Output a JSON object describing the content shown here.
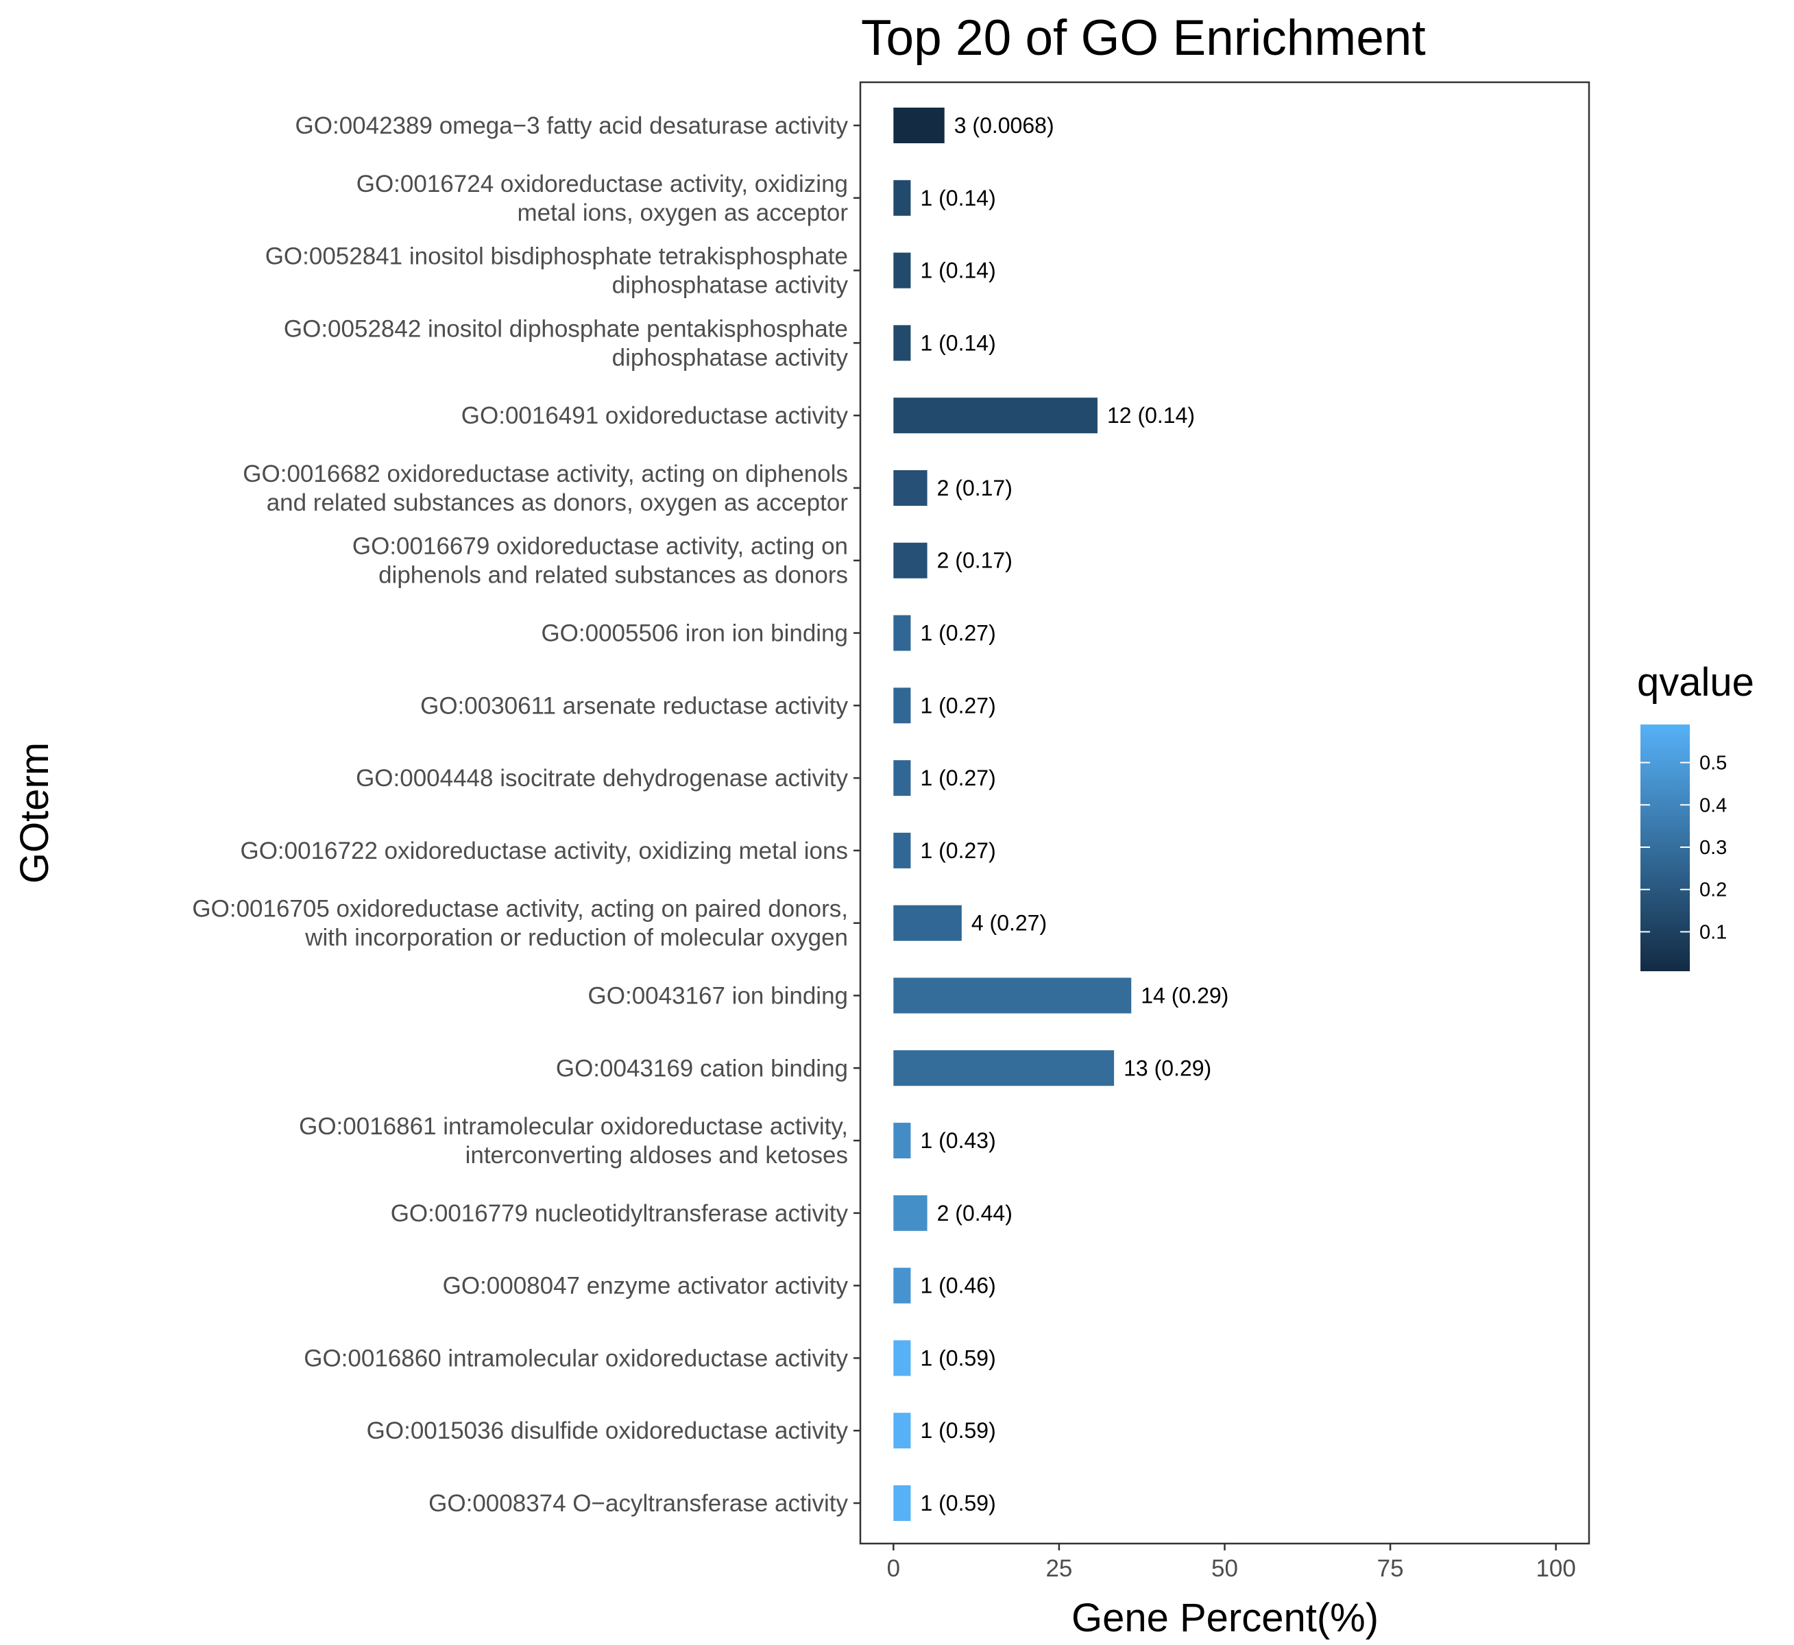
{
  "chart_data": {
    "type": "bar",
    "orientation": "horizontal",
    "title": "Top 20 of GO Enrichment",
    "xlabel": "Gene Percent(%)",
    "ylabel": "GOterm",
    "xlim": [
      -5,
      105
    ],
    "x_ticks": [
      0,
      25,
      50,
      75,
      100
    ],
    "grid": false,
    "legend": {
      "title": "qvalue",
      "placement": "right",
      "type": "colorbar",
      "range": [
        0.0068,
        0.59
      ],
      "ticks": [
        0.1,
        0.2,
        0.3,
        0.4,
        0.5
      ],
      "color_low": "#132b43",
      "color_high": "#56b1f7"
    },
    "categories": [
      [
        "GO:0042389 omega−3 fatty acid desaturase activity"
      ],
      [
        "GO:0016724 oxidoreductase activity, oxidizing",
        "metal ions, oxygen as acceptor"
      ],
      [
        "GO:0052841 inositol bisdiphosphate tetrakisphosphate",
        "diphosphatase activity"
      ],
      [
        "GO:0052842 inositol diphosphate pentakisphosphate",
        "diphosphatase activity"
      ],
      [
        "GO:0016491 oxidoreductase activity"
      ],
      [
        "GO:0016682 oxidoreductase activity, acting on diphenols",
        "and related substances as donors, oxygen as acceptor"
      ],
      [
        "GO:0016679 oxidoreductase activity, acting on",
        "diphenols and related substances as donors"
      ],
      [
        "GO:0005506 iron ion binding"
      ],
      [
        "GO:0030611 arsenate reductase activity"
      ],
      [
        "GO:0004448 isocitrate dehydrogenase activity"
      ],
      [
        "GO:0016722 oxidoreductase activity, oxidizing metal ions"
      ],
      [
        "GO:0016705 oxidoreductase activity, acting on paired donors,",
        "with incorporation or reduction of molecular oxygen"
      ],
      [
        "GO:0043167 ion binding"
      ],
      [
        "GO:0043169 cation binding"
      ],
      [
        "GO:0016861 intramolecular oxidoreductase activity,",
        "interconverting aldoses and ketoses"
      ],
      [
        "GO:0016779 nucleotidyltransferase activity"
      ],
      [
        "GO:0008047 enzyme activator activity"
      ],
      [
        "GO:0016860 intramolecular oxidoreductase activity"
      ],
      [
        "GO:0015036 disulfide oxidoreductase activity"
      ],
      [
        "GO:0008374 O−acyltransferase activity"
      ]
    ],
    "values": [
      7.7,
      2.6,
      2.6,
      2.6,
      30.8,
      5.1,
      5.1,
      2.6,
      2.6,
      2.6,
      2.6,
      10.3,
      35.9,
      33.3,
      2.6,
      5.1,
      2.6,
      2.6,
      2.6,
      2.6
    ],
    "qvalues": [
      0.0068,
      0.14,
      0.14,
      0.14,
      0.14,
      0.17,
      0.17,
      0.27,
      0.27,
      0.27,
      0.27,
      0.27,
      0.29,
      0.29,
      0.43,
      0.44,
      0.46,
      0.59,
      0.59,
      0.59
    ],
    "bar_labels": [
      "3 (0.0068)",
      "1 (0.14)",
      "1 (0.14)",
      "1 (0.14)",
      "12 (0.14)",
      "2 (0.17)",
      "2 (0.17)",
      "1 (0.27)",
      "1 (0.27)",
      "1 (0.27)",
      "1 (0.27)",
      "4 (0.27)",
      "14 (0.29)",
      "13 (0.29)",
      "1 (0.43)",
      "2 (0.44)",
      "1 (0.46)",
      "1 (0.59)",
      "1 (0.59)",
      "1 (0.59)"
    ]
  }
}
